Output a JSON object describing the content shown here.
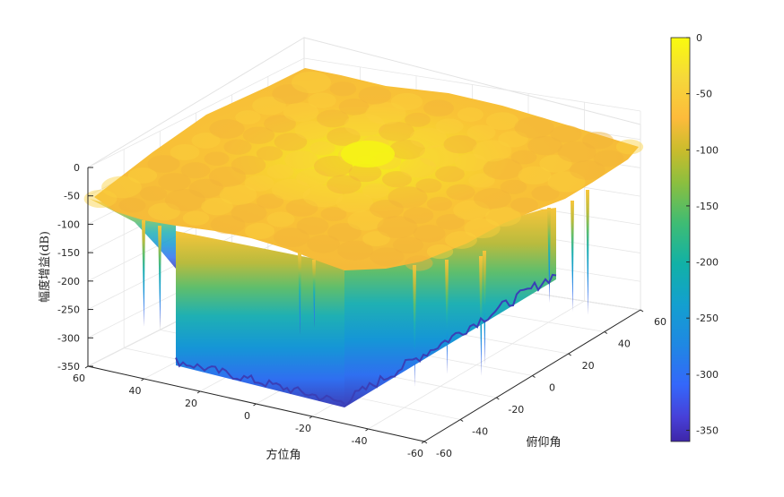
{
  "chart_data": {
    "type": "surface",
    "title": "",
    "xlabel": "方位角",
    "ylabel": "俯仰角",
    "zlabel": "幅度增益(dB)",
    "xlim": [
      -60,
      60
    ],
    "ylim": [
      -60,
      60
    ],
    "zlim": [
      -350,
      0
    ],
    "x_ticks": [
      "60",
      "40",
      "20",
      "0",
      "-20",
      "-40",
      "-60"
    ],
    "y_ticks": [
      "-60",
      "-40",
      "-20",
      "0",
      "20",
      "40",
      "60"
    ],
    "z_ticks": [
      "0",
      "-50",
      "-100",
      "-150",
      "-200",
      "-250",
      "-300",
      "-350"
    ],
    "colorbar": {
      "ticks": [
        "0",
        "-50",
        "-100",
        "-150",
        "-200",
        "-250",
        "-300",
        "-350"
      ],
      "range": [
        -360,
        0
      ],
      "colormap": "parula"
    },
    "grid": true,
    "peak": {
      "x": 0,
      "y": 0,
      "z": 0
    },
    "surface_level_db": -50,
    "min_db": -355
  }
}
